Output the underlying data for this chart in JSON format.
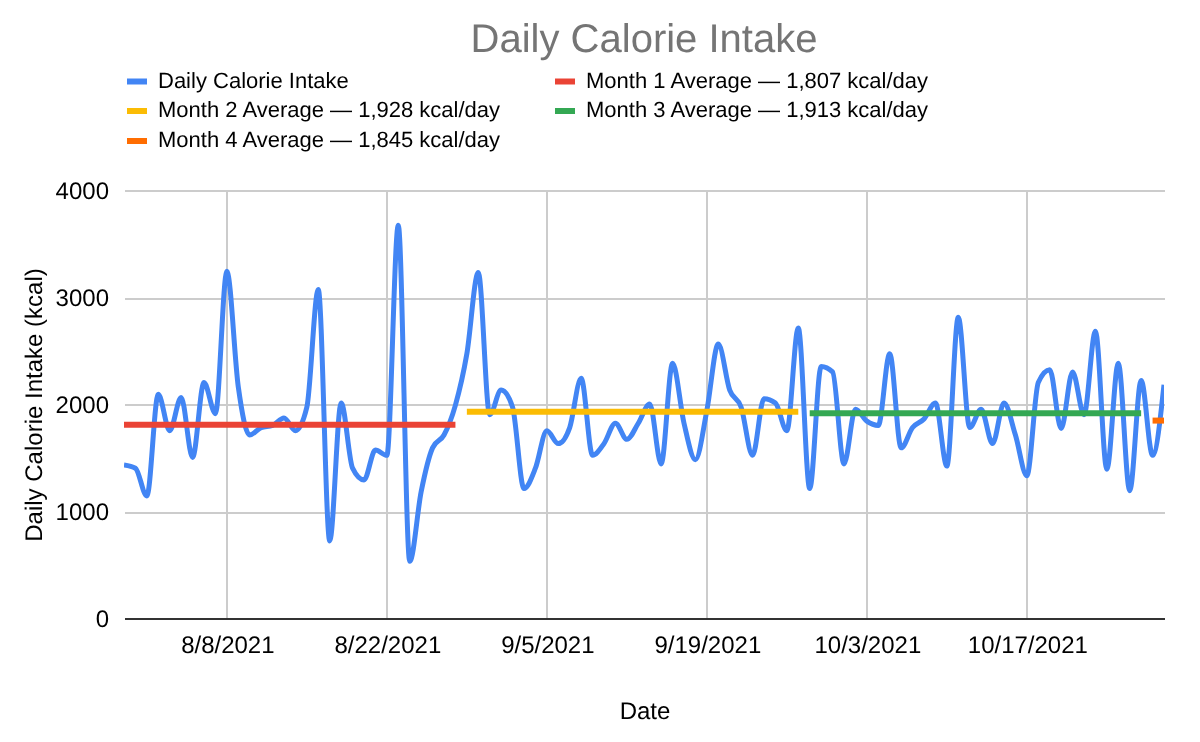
{
  "chart_data": {
    "type": "line",
    "title": "Daily Calorie Intake",
    "xlabel": "Date",
    "ylabel": "Daily Calorie Intake (kcal)",
    "x": [
      "2021-07-30",
      "2021-07-31",
      "2021-08-01",
      "2021-08-02",
      "2021-08-03",
      "2021-08-04",
      "2021-08-05",
      "2021-08-06",
      "2021-08-07",
      "2021-08-08",
      "2021-08-09",
      "2021-08-10",
      "2021-08-11",
      "2021-08-12",
      "2021-08-13",
      "2021-08-14",
      "2021-08-15",
      "2021-08-16",
      "2021-08-17",
      "2021-08-18",
      "2021-08-19",
      "2021-08-20",
      "2021-08-21",
      "2021-08-22",
      "2021-08-23",
      "2021-08-24",
      "2021-08-25",
      "2021-08-26",
      "2021-08-27",
      "2021-08-28",
      "2021-08-29",
      "2021-08-30",
      "2021-08-31",
      "2021-09-01",
      "2021-09-02",
      "2021-09-03",
      "2021-09-04",
      "2021-09-05",
      "2021-09-06",
      "2021-09-07",
      "2021-09-08",
      "2021-09-09",
      "2021-09-10",
      "2021-09-11",
      "2021-09-12",
      "2021-09-13",
      "2021-09-14",
      "2021-09-15",
      "2021-09-16",
      "2021-09-17",
      "2021-09-18",
      "2021-09-19",
      "2021-09-20",
      "2021-09-21",
      "2021-09-22",
      "2021-09-23",
      "2021-09-24",
      "2021-09-25",
      "2021-09-26",
      "2021-09-27",
      "2021-09-28",
      "2021-09-29",
      "2021-09-30",
      "2021-10-01",
      "2021-10-02",
      "2021-10-03",
      "2021-10-04",
      "2021-10-05",
      "2021-10-06",
      "2021-10-07",
      "2021-10-08",
      "2021-10-09",
      "2021-10-10",
      "2021-10-11",
      "2021-10-12",
      "2021-10-13",
      "2021-10-14",
      "2021-10-15",
      "2021-10-16",
      "2021-10-17",
      "2021-10-18",
      "2021-10-19",
      "2021-10-20",
      "2021-10-21",
      "2021-10-22",
      "2021-10-23",
      "2021-10-24",
      "2021-10-25",
      "2021-10-26",
      "2021-10-27",
      "2021-10-28",
      "2021-10-29"
    ],
    "series": [
      {
        "name": "Daily Calorie Intake",
        "color": "#4285f4",
        "values": [
          1430,
          1400,
          1140,
          2090,
          1750,
          2060,
          1500,
          2200,
          1910,
          3240,
          2160,
          1710,
          1780,
          1800,
          1870,
          1750,
          1970,
          3070,
          720,
          2010,
          1400,
          1290,
          1570,
          1520,
          3670,
          530,
          1180,
          1590,
          1710,
          1990,
          2470,
          3230,
          1900,
          2130,
          1970,
          1210,
          1400,
          1750,
          1630,
          1780,
          2240,
          1520,
          1630,
          1820,
          1670,
          1820,
          2000,
          1440,
          2380,
          1820,
          1480,
          1940,
          2560,
          2130,
          1970,
          1520,
          2050,
          2010,
          1750,
          2710,
          1210,
          2350,
          2300,
          1440,
          1950,
          1840,
          1800,
          2470,
          1590,
          1780,
          1860,
          2010,
          1420,
          2810,
          1780,
          1950,
          1630,
          2010,
          1710,
          1330,
          2200,
          2320,
          1770,
          2300,
          1900,
          2680,
          1390,
          2380,
          1190,
          2220,
          1520,
          2180
        ]
      },
      {
        "name": "Month 1 Average — 1,807 kcal/day",
        "color": "#ea4335",
        "x": [
          "2021-07-30",
          "2021-08-28"
        ],
        "values": [
          1807,
          1807
        ]
      },
      {
        "name": "Month 2 Average — 1,928 kcal/day",
        "color": "#fbbc04",
        "x": [
          "2021-08-29",
          "2021-09-27"
        ],
        "values": [
          1928,
          1928
        ]
      },
      {
        "name": "Month 3 Average — 1,913 kcal/day",
        "color": "#34a853",
        "x": [
          "2021-09-28",
          "2021-10-27"
        ],
        "values": [
          1913,
          1913
        ]
      },
      {
        "name": "Month 4 Average — 1,845 kcal/day",
        "color": "#ff6d01",
        "x": [
          "2021-10-28",
          "2021-10-29"
        ],
        "values": [
          1845,
          1845
        ]
      }
    ],
    "xlim": [
      "2021-07-30",
      "2021-10-29"
    ],
    "xticks": [
      {
        "value": "2021-08-08",
        "label": "8/8/2021"
      },
      {
        "value": "2021-08-22",
        "label": "8/22/2021"
      },
      {
        "value": "2021-09-05",
        "label": "9/5/2021"
      },
      {
        "value": "2021-09-19",
        "label": "9/19/2021"
      },
      {
        "value": "2021-10-03",
        "label": "10/3/2021"
      },
      {
        "value": "2021-10-17",
        "label": "10/17/2021"
      }
    ],
    "ylim": [
      0,
      4000
    ],
    "yticks": [
      0,
      1000,
      2000,
      3000,
      4000
    ],
    "grid": true,
    "legend": "top"
  }
}
